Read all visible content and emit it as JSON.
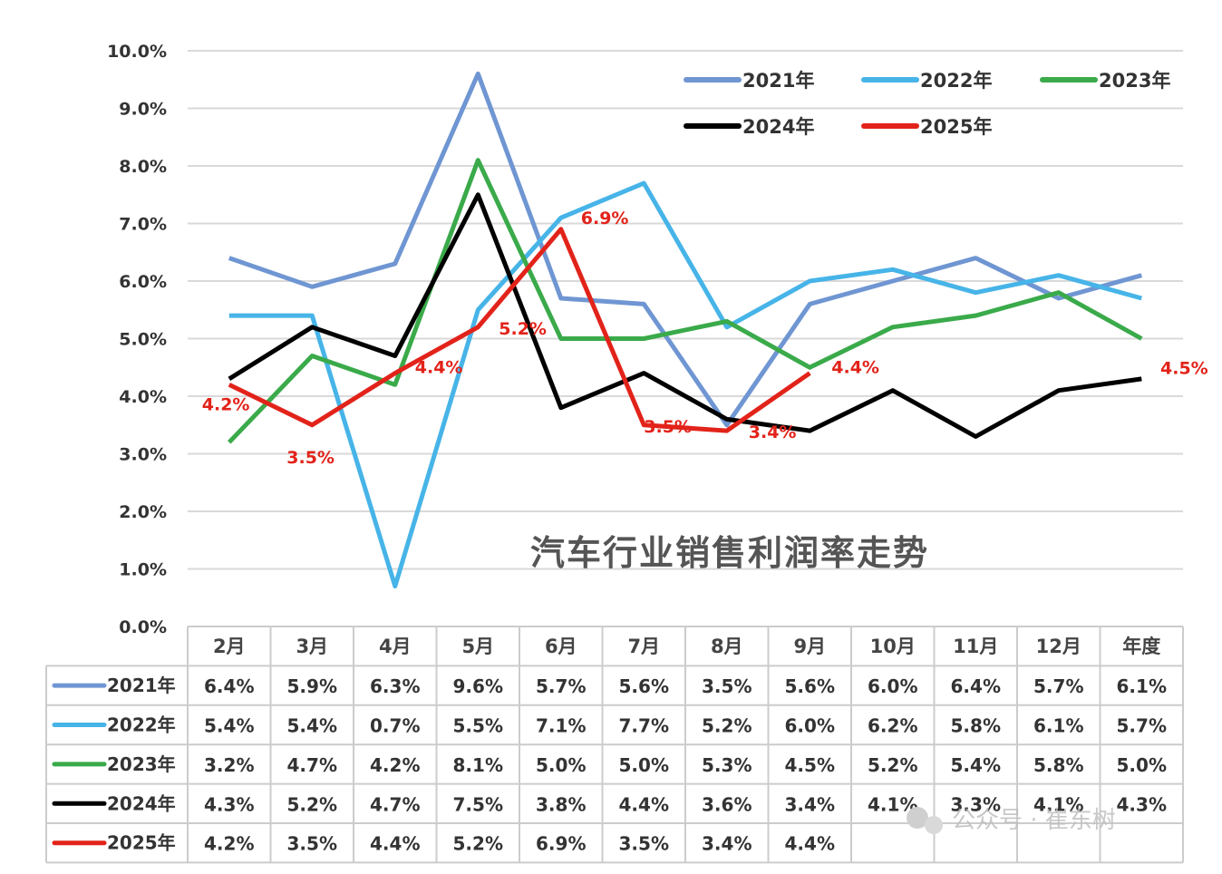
{
  "chart_data": {
    "type": "line",
    "title": "汽车行业销售利润率走势",
    "categories": [
      "2月",
      "3月",
      "4月",
      "5月",
      "6月",
      "7月",
      "8月",
      "9月",
      "10月",
      "11月",
      "12月",
      "年度"
    ],
    "y_ticks": [
      "0.0%",
      "1.0%",
      "2.0%",
      "3.0%",
      "4.0%",
      "5.0%",
      "6.0%",
      "7.0%",
      "8.0%",
      "9.0%",
      "10.0%"
    ],
    "ylim": [
      0,
      10
    ],
    "grid": true,
    "legend_position": "top-right",
    "series": [
      {
        "name": "2021年",
        "color": "#6f96d2",
        "values": [
          6.4,
          5.9,
          6.3,
          9.6,
          5.7,
          5.6,
          3.5,
          5.6,
          6.0,
          6.4,
          5.7,
          6.1
        ],
        "display": [
          "6.4%",
          "5.9%",
          "6.3%",
          "9.6%",
          "5.7%",
          "5.6%",
          "3.5%",
          "5.6%",
          "6.0%",
          "6.4%",
          "5.7%",
          "6.1%"
        ]
      },
      {
        "name": "2022年",
        "color": "#47b4e8",
        "values": [
          5.4,
          5.4,
          0.7,
          5.5,
          7.1,
          7.7,
          5.2,
          6.0,
          6.2,
          5.8,
          6.1,
          5.7
        ],
        "display": [
          "5.4%",
          "5.4%",
          "0.7%",
          "5.5%",
          "7.1%",
          "7.7%",
          "5.2%",
          "6.0%",
          "6.2%",
          "5.8%",
          "6.1%",
          "5.7%"
        ]
      },
      {
        "name": "2023年",
        "color": "#3aaa4a",
        "values": [
          3.2,
          4.7,
          4.2,
          8.1,
          5.0,
          5.0,
          5.3,
          4.5,
          5.2,
          5.4,
          5.8,
          5.0
        ],
        "display": [
          "3.2%",
          "4.7%",
          "4.2%",
          "8.1%",
          "5.0%",
          "5.0%",
          "5.3%",
          "4.5%",
          "5.2%",
          "5.4%",
          "5.8%",
          "5.0%"
        ]
      },
      {
        "name": "2024年",
        "color": "#000000",
        "values": [
          4.3,
          5.2,
          4.7,
          7.5,
          3.8,
          4.4,
          3.6,
          3.4,
          4.1,
          3.3,
          4.1,
          4.3
        ],
        "display": [
          "4.3%",
          "5.2%",
          "4.7%",
          "7.5%",
          "3.8%",
          "4.4%",
          "3.6%",
          "3.4%",
          "4.1%",
          "3.3%",
          "4.1%",
          "4.3%"
        ]
      },
      {
        "name": "2025年",
        "color": "#e2231a",
        "values": [
          4.2,
          3.5,
          4.4,
          5.2,
          6.9,
          3.5,
          3.4,
          4.4,
          null,
          null,
          null,
          4.5
        ],
        "display": [
          "4.2%",
          "3.5%",
          "4.4%",
          "5.2%",
          "6.9%",
          "3.5%",
          "3.4%",
          "4.4%",
          "",
          "",
          "",
          ""
        ]
      }
    ],
    "data_labels_2025": [
      "4.2%",
      "3.5%",
      "4.4%",
      "5.2%",
      "6.9%",
      "3.5%",
      "3.4%",
      "4.4%",
      "4.5%"
    ]
  },
  "watermark": "公众号 · 崔东树"
}
